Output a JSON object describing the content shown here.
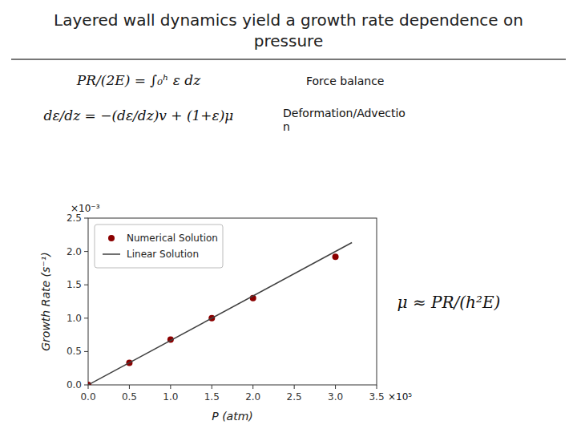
{
  "chart_data": {
    "type": "scatter",
    "title": "Layered wall dynamics yield a growth rate dependence on\npressure",
    "x_label": "P (atm)",
    "y_label": "Growth Rate (s⁻¹)",
    "series": [
      {
        "name": "Numerical Solution",
        "type": "scatter",
        "marker": "circle",
        "color": "#8b0000",
        "x": [
          0.0,
          0.5,
          1.0,
          1.5,
          2.0,
          3.0
        ],
        "values": [
          0.0,
          0.33,
          0.68,
          1.0,
          1.3,
          1.92
        ]
      },
      {
        "name": "Linear Solution",
        "type": "line",
        "line_style": "solid",
        "color": "#404040",
        "x": [
          0.0,
          3.2
        ],
        "values": [
          0.0,
          2.133
        ]
      }
    ],
    "xlim": [
      0,
      3.5
    ],
    "ylim": [
      0,
      2.5
    ],
    "xticks": [
      {
        "value": 0,
        "label": "0.0"
      },
      0.5,
      {
        "value": 1,
        "label": "1.0"
      },
      1.5,
      {
        "value": 2,
        "label": "2.0"
      },
      2.5,
      {
        "value": 3,
        "label": "3.0"
      },
      3.5
    ],
    "yticks": [
      {
        "value": 0,
        "label": "0.0"
      },
      0.5,
      {
        "value": 1,
        "label": "1.0"
      },
      1.5,
      {
        "value": 2,
        "label": "2.0"
      },
      2.5
    ],
    "grid": false,
    "legend": "upper left",
    "annotations": [
      "PR/(2E) = ∫₀ʰ ε dz",
      "Force balance",
      "dε/dz = −(dε/dz)v + (1+ε)μ",
      "Deformation/Advectio\nn",
      "μ ≈ PR/(h²E)",
      "×10⁻³",
      "×10⁵"
    ]
  }
}
